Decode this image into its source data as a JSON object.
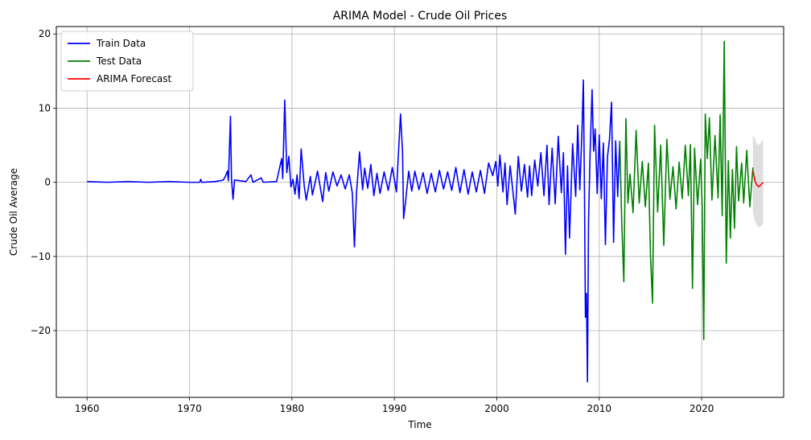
{
  "chart_data": {
    "type": "line",
    "title": "ARIMA Model - Crude Oil Prices",
    "xlabel": "Time",
    "ylabel": "Crude Oil Average",
    "xlim": [
      1957,
      2028
    ],
    "ylim": [
      -29,
      21
    ],
    "xticks": [
      1960,
      1970,
      1980,
      1990,
      2000,
      2010,
      2020
    ],
    "yticks": [
      -20,
      -10,
      0,
      10,
      20
    ],
    "grid": true,
    "legend_position": "top-left",
    "series": [
      {
        "name": "Train Data",
        "color": "#0000ff",
        "points": [
          [
            1960.0,
            0.1
          ],
          [
            1962.0,
            0.0
          ],
          [
            1964.0,
            0.1
          ],
          [
            1966.0,
            0.0
          ],
          [
            1968.0,
            0.1
          ],
          [
            1970.0,
            0.0
          ],
          [
            1971.0,
            0.0
          ],
          [
            1971.1,
            0.4
          ],
          [
            1971.2,
            0.0
          ],
          [
            1972.5,
            0.1
          ],
          [
            1973.3,
            0.3
          ],
          [
            1973.5,
            0.8
          ],
          [
            1973.7,
            1.5
          ],
          [
            1973.8,
            0.2
          ],
          [
            1974.0,
            8.9
          ],
          [
            1974.1,
            0.5
          ],
          [
            1974.25,
            -2.3
          ],
          [
            1974.4,
            0.3
          ],
          [
            1975.5,
            0.1
          ],
          [
            1976.0,
            1.0
          ],
          [
            1976.2,
            0.0
          ],
          [
            1977.0,
            0.6
          ],
          [
            1977.2,
            0.0
          ],
          [
            1978.5,
            0.1
          ],
          [
            1979.0,
            3.2
          ],
          [
            1979.1,
            0.5
          ],
          [
            1979.3,
            11.1
          ],
          [
            1979.5,
            1.3
          ],
          [
            1979.7,
            3.5
          ],
          [
            1979.9,
            -0.6
          ],
          [
            1980.1,
            0.4
          ],
          [
            1980.3,
            -1.6
          ],
          [
            1980.5,
            1.0
          ],
          [
            1980.7,
            -2.2
          ],
          [
            1980.9,
            4.5
          ],
          [
            1981.2,
            -0.5
          ],
          [
            1981.4,
            -2.4
          ],
          [
            1981.8,
            0.8
          ],
          [
            1982.0,
            -1.7
          ],
          [
            1982.5,
            1.5
          ],
          [
            1983.0,
            -2.6
          ],
          [
            1983.3,
            1.3
          ],
          [
            1983.6,
            -1.2
          ],
          [
            1984.0,
            1.4
          ],
          [
            1984.4,
            -0.5
          ],
          [
            1984.8,
            1.0
          ],
          [
            1985.2,
            -0.9
          ],
          [
            1985.6,
            1.0
          ],
          [
            1985.9,
            -1.5
          ],
          [
            1986.1,
            -8.7
          ],
          [
            1986.3,
            -1.5
          ],
          [
            1986.6,
            4.1
          ],
          [
            1986.9,
            -1.0
          ],
          [
            1987.1,
            1.9
          ],
          [
            1987.4,
            -0.8
          ],
          [
            1987.7,
            2.4
          ],
          [
            1988.0,
            -1.8
          ],
          [
            1988.3,
            1.2
          ],
          [
            1988.6,
            -1.5
          ],
          [
            1989.0,
            1.4
          ],
          [
            1989.4,
            -1.1
          ],
          [
            1989.8,
            2.0
          ],
          [
            1990.2,
            -1.3
          ],
          [
            1990.6,
            9.2
          ],
          [
            1990.8,
            4.0
          ],
          [
            1990.9,
            -4.9
          ],
          [
            1991.1,
            -2.5
          ],
          [
            1991.4,
            1.5
          ],
          [
            1991.7,
            -1.2
          ],
          [
            1992.0,
            1.5
          ],
          [
            1992.4,
            -1.0
          ],
          [
            1992.8,
            1.3
          ],
          [
            1993.2,
            -1.5
          ],
          [
            1993.6,
            1.2
          ],
          [
            1994.0,
            -1.3
          ],
          [
            1994.4,
            1.6
          ],
          [
            1994.8,
            -0.9
          ],
          [
            1995.2,
            1.4
          ],
          [
            1995.6,
            -1.1
          ],
          [
            1996.0,
            2.0
          ],
          [
            1996.4,
            -1.4
          ],
          [
            1996.8,
            1.7
          ],
          [
            1997.2,
            -1.6
          ],
          [
            1997.6,
            1.4
          ],
          [
            1998.0,
            -1.3
          ],
          [
            1998.4,
            1.6
          ],
          [
            1998.8,
            -1.5
          ],
          [
            1999.2,
            2.6
          ],
          [
            1999.6,
            0.9
          ],
          [
            1999.9,
            2.8
          ],
          [
            2000.1,
            -0.5
          ],
          [
            2000.3,
            3.7
          ],
          [
            2000.6,
            -1.3
          ],
          [
            2000.8,
            2.6
          ],
          [
            2001.0,
            -3.0
          ],
          [
            2001.3,
            2.2
          ],
          [
            2001.6,
            -1.6
          ],
          [
            2001.8,
            -4.3
          ],
          [
            2002.1,
            3.5
          ],
          [
            2002.4,
            -1.2
          ],
          [
            2002.7,
            2.4
          ],
          [
            2003.0,
            -2.0
          ],
          [
            2003.2,
            2.2
          ],
          [
            2003.4,
            -1.8
          ],
          [
            2003.7,
            3.0
          ],
          [
            2004.0,
            -0.5
          ],
          [
            2004.3,
            4.0
          ],
          [
            2004.6,
            -1.8
          ],
          [
            2004.9,
            5.0
          ],
          [
            2005.1,
            -3.0
          ],
          [
            2005.4,
            4.6
          ],
          [
            2005.7,
            -2.9
          ],
          [
            2006.0,
            6.2
          ],
          [
            2006.3,
            -1.4
          ],
          [
            2006.5,
            4.0
          ],
          [
            2006.7,
            -9.7
          ],
          [
            2006.9,
            2.2
          ],
          [
            2007.1,
            -7.5
          ],
          [
            2007.4,
            5.2
          ],
          [
            2007.7,
            -1.9
          ],
          [
            2007.9,
            7.7
          ],
          [
            2008.1,
            -1.0
          ],
          [
            2008.3,
            6.3
          ],
          [
            2008.45,
            13.8
          ],
          [
            2008.55,
            0.0
          ],
          [
            2008.65,
            -18.2
          ],
          [
            2008.75,
            -15.0
          ],
          [
            2008.85,
            -26.9
          ],
          [
            2008.95,
            -5.5
          ],
          [
            2009.1,
            3.6
          ],
          [
            2009.3,
            12.5
          ],
          [
            2009.45,
            4.2
          ],
          [
            2009.6,
            7.2
          ],
          [
            2009.8,
            -1.5
          ],
          [
            2010.0,
            6.4
          ],
          [
            2010.2,
            -2.2
          ],
          [
            2010.4,
            5.3
          ],
          [
            2010.6,
            -8.4
          ],
          [
            2010.8,
            3.4
          ],
          [
            2011.0,
            5.8
          ],
          [
            2011.2,
            10.8
          ],
          [
            2011.4,
            -8.1
          ],
          [
            2011.6,
            5.6
          ],
          [
            2011.8,
            -1.9
          ],
          [
            2012.0,
            5.6
          ]
        ]
      },
      {
        "name": "Test Data",
        "color": "#008000",
        "points": [
          [
            2012.0,
            5.6
          ],
          [
            2012.2,
            -5.6
          ],
          [
            2012.4,
            -13.4
          ],
          [
            2012.6,
            8.6
          ],
          [
            2012.8,
            -2.8
          ],
          [
            2013.0,
            1.1
          ],
          [
            2013.3,
            -4.1
          ],
          [
            2013.6,
            7.0
          ],
          [
            2013.9,
            -2.8
          ],
          [
            2014.2,
            2.8
          ],
          [
            2014.5,
            -3.3
          ],
          [
            2014.8,
            2.6
          ],
          [
            2015.0,
            -9.8
          ],
          [
            2015.2,
            -16.3
          ],
          [
            2015.4,
            7.7
          ],
          [
            2015.7,
            -4.0
          ],
          [
            2016.0,
            5.0
          ],
          [
            2016.3,
            -8.5
          ],
          [
            2016.6,
            5.8
          ],
          [
            2016.9,
            -2.3
          ],
          [
            2017.2,
            2.1
          ],
          [
            2017.5,
            -3.6
          ],
          [
            2017.8,
            2.7
          ],
          [
            2018.1,
            -2.2
          ],
          [
            2018.4,
            5.0
          ],
          [
            2018.7,
            -1.8
          ],
          [
            2018.9,
            5.1
          ],
          [
            2019.1,
            -14.3
          ],
          [
            2019.3,
            4.6
          ],
          [
            2019.6,
            -3.0
          ],
          [
            2019.9,
            3.1
          ],
          [
            2020.05,
            -3.5
          ],
          [
            2020.2,
            -21.2
          ],
          [
            2020.35,
            9.2
          ],
          [
            2020.55,
            3.2
          ],
          [
            2020.75,
            8.7
          ],
          [
            2021.0,
            -2.4
          ],
          [
            2021.3,
            6.3
          ],
          [
            2021.6,
            -2.1
          ],
          [
            2021.8,
            9.1
          ],
          [
            2022.0,
            -4.5
          ],
          [
            2022.2,
            19.0
          ],
          [
            2022.4,
            -10.9
          ],
          [
            2022.6,
            2.9
          ],
          [
            2022.8,
            -7.5
          ],
          [
            2023.0,
            1.7
          ],
          [
            2023.2,
            -6.2
          ],
          [
            2023.4,
            4.8
          ],
          [
            2023.6,
            -2.5
          ],
          [
            2023.9,
            2.6
          ],
          [
            2024.1,
            -2.8
          ],
          [
            2024.4,
            4.3
          ],
          [
            2024.7,
            -3.3
          ],
          [
            2025.0,
            2.0
          ]
        ]
      },
      {
        "name": "ARIMA Forecast",
        "color": "#ff0000",
        "points": [
          [
            2025.0,
            1.6
          ],
          [
            2025.2,
            0.2
          ],
          [
            2025.4,
            -0.4
          ],
          [
            2025.6,
            -0.6
          ],
          [
            2025.8,
            -0.3
          ],
          [
            2026.0,
            0.0
          ]
        ]
      }
    ],
    "confidence_band": {
      "color": "#d3d3d3",
      "x": [
        2025.0,
        2025.2,
        2025.4,
        2025.6,
        2025.8,
        2026.0
      ],
      "upper": [
        6.3,
        5.9,
        5.1,
        5.1,
        5.4,
        5.8
      ],
      "lower": [
        -4.1,
        -5.3,
        -5.8,
        -6.1,
        -5.9,
        -5.6
      ]
    }
  }
}
